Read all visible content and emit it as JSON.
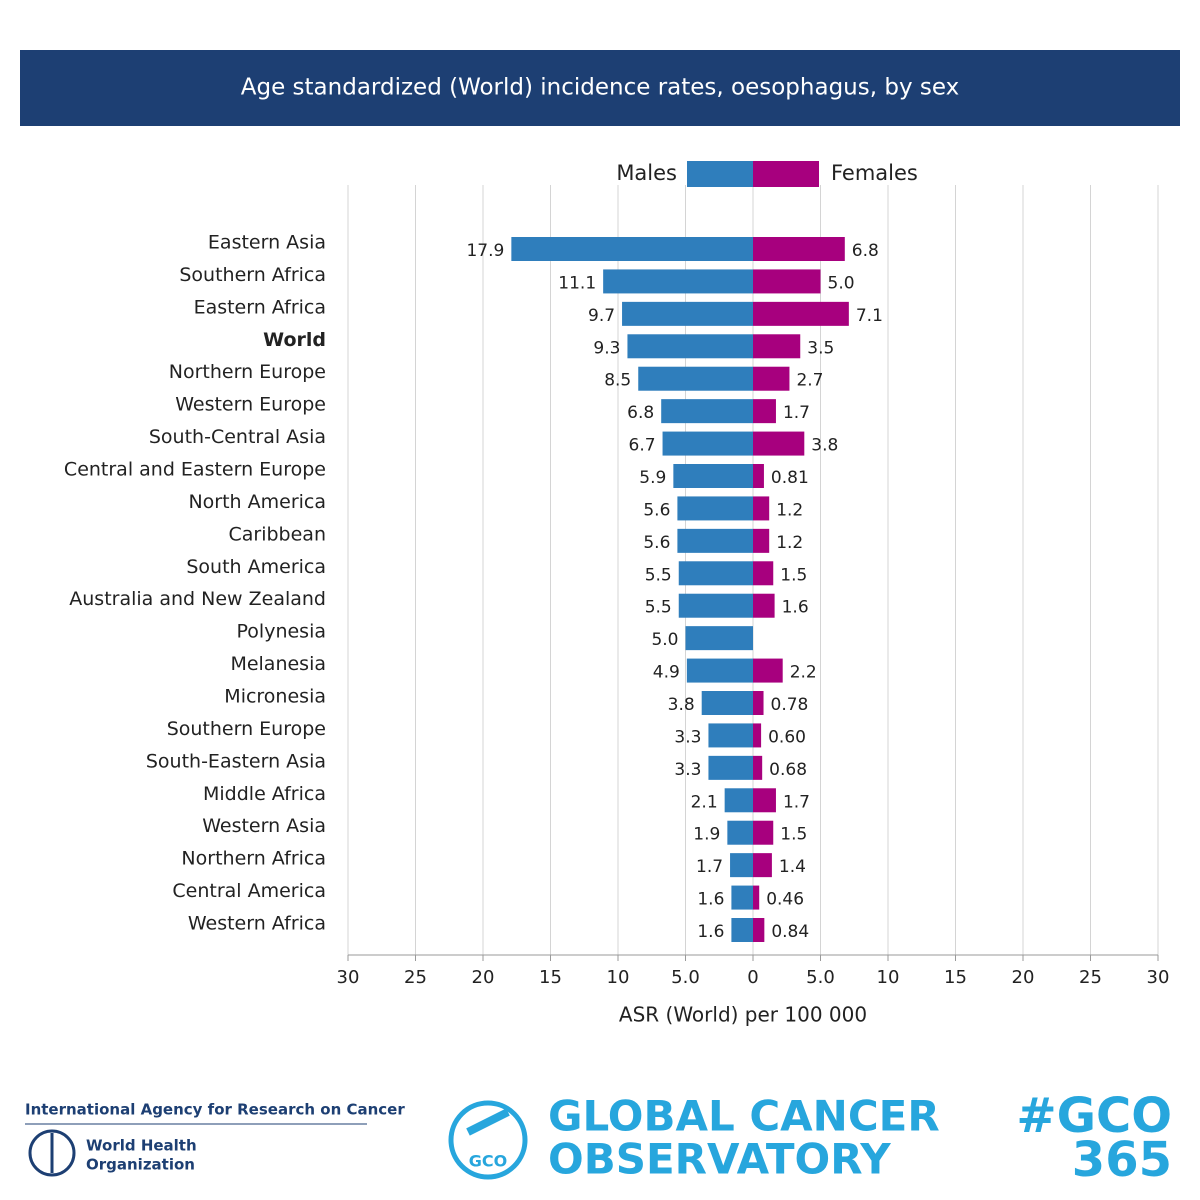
{
  "chart_data": {
    "type": "diverging_bar",
    "title": "Age standardized (World) incidence rates, oesophagus, by sex",
    "x_label": "ASR (World) per 100 000",
    "categories": [
      "Eastern Asia",
      "Southern Africa",
      "Eastern Africa",
      "World",
      "Northern Europe",
      "Western Europe",
      "South-Central Asia",
      "Central and Eastern Europe",
      "North America",
      "Caribbean",
      "South America",
      "Australia and New Zealand",
      "Polynesia",
      "Melanesia",
      "Micronesia",
      "Southern Europe",
      "South-Eastern Asia",
      "Middle Africa",
      "Western Asia",
      "Northern Africa",
      "Central America",
      "Western Africa"
    ],
    "bold_category_index": 3,
    "series": [
      {
        "name": "Males",
        "color": "#2f7ebc",
        "side": "left",
        "values": [
          17.9,
          11.1,
          9.7,
          9.3,
          8.5,
          6.8,
          6.7,
          5.9,
          5.6,
          5.6,
          5.5,
          5.5,
          5.0,
          4.9,
          3.8,
          3.3,
          3.3,
          2.1,
          1.9,
          1.7,
          1.6,
          1.6
        ],
        "value_labels": [
          "17.9",
          "11.1",
          "9.7",
          "9.3",
          "8.5",
          "6.8",
          "6.7",
          "5.9",
          "5.6",
          "5.6",
          "5.5",
          "5.5",
          "5.0",
          "4.9",
          "3.8",
          "3.3",
          "3.3",
          "2.1",
          "1.9",
          "1.7",
          "1.6",
          "1.6"
        ]
      },
      {
        "name": "Females",
        "color": "#a7007e",
        "side": "right",
        "values": [
          6.8,
          5.0,
          7.1,
          3.5,
          2.7,
          1.7,
          3.8,
          0.81,
          1.2,
          1.2,
          1.5,
          1.6,
          null,
          2.2,
          0.78,
          0.6,
          0.68,
          1.7,
          1.5,
          1.4,
          0.46,
          0.84
        ],
        "value_labels": [
          "6.8",
          "5.0",
          "7.1",
          "3.5",
          "2.7",
          "1.7",
          "3.8",
          "0.81",
          "1.2",
          "1.2",
          "1.5",
          "1.6",
          null,
          "2.2",
          "0.78",
          "0.60",
          "0.68",
          "1.7",
          "1.5",
          "1.4",
          "0.46",
          "0.84"
        ]
      }
    ],
    "xlim": [
      0,
      30
    ],
    "xticks_left": [
      30,
      25,
      20,
      15,
      10,
      {
        "value": 5,
        "label": "5.0"
      }
    ],
    "xticks_right": [
      0,
      {
        "value": 5,
        "label": "5.0"
      },
      10,
      15,
      20,
      25,
      30
    ],
    "grid": true
  },
  "footer": {
    "iarc": "International Agency for Research on Cancer",
    "who": [
      "World Health",
      "Organization"
    ],
    "gco_badge": "GCO",
    "gco": [
      "GLOBAL CANCER",
      "OBSERVATORY"
    ],
    "hashtag": [
      "#GCO",
      "365"
    ]
  }
}
